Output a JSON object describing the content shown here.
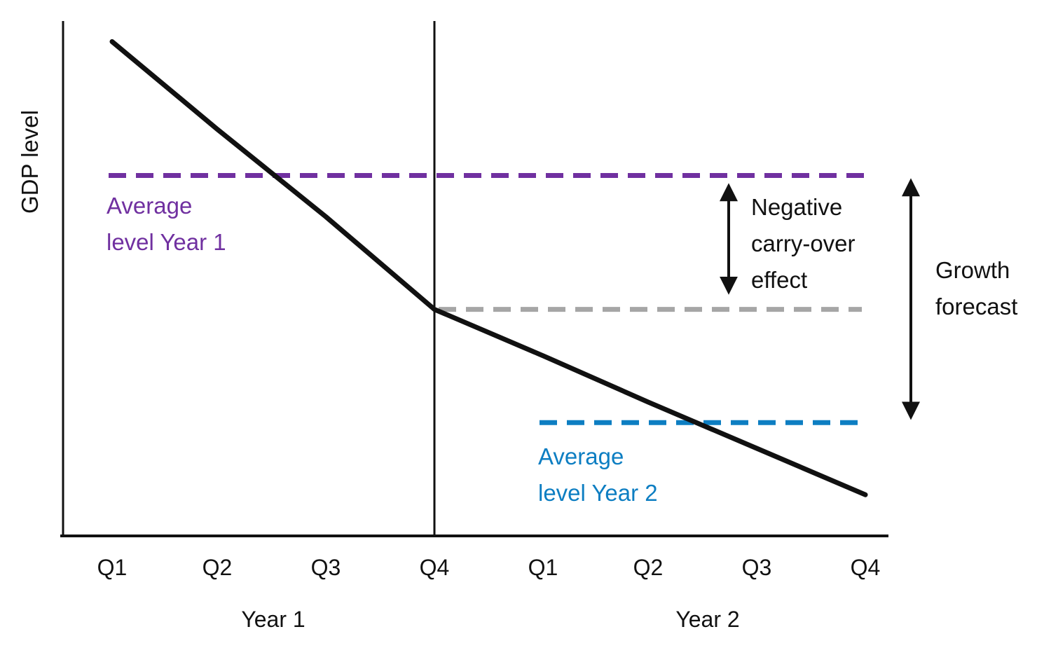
{
  "y_axis_label": "GDP level",
  "annotations": {
    "avg_year1": "Average\nlevel Year 1",
    "avg_year2": "Average\nlevel Year 2",
    "negative_carryover": "Negative\ncarry-over\neffect",
    "growth_forecast": "Growth\nforecast"
  },
  "x_axis": {
    "quarter_labels": [
      "Q1",
      "Q2",
      "Q3",
      "Q4",
      "Q1",
      "Q2",
      "Q3",
      "Q4"
    ],
    "year_labels": [
      "Year 1",
      "Year 2"
    ]
  },
  "colors": {
    "line_black": "#111111",
    "purple": "#7030A0",
    "blue": "#0D7EC2",
    "gray": "#A6A6A6"
  },
  "chart_data": {
    "type": "line",
    "title": "",
    "xlabel": "",
    "ylabel": "GDP level",
    "categories": [
      "Year 1 Q1",
      "Year 1 Q2",
      "Year 1 Q3",
      "Year 1 Q4",
      "Year 2 Q1",
      "Year 2 Q2",
      "Year 2 Q3",
      "Year 2 Q4"
    ],
    "values": [
      96,
      79,
      62,
      44,
      35,
      26,
      17,
      8
    ],
    "ylim": [
      0,
      100
    ],
    "grid": false,
    "legend_position": "none",
    "reference_lines": [
      {
        "label": "Average level Year 1",
        "value": 70,
        "color": "#7030A0",
        "style": "dashed"
      },
      {
        "label": "Q4 Year 1 carry-over level",
        "value": 44,
        "color": "#A6A6A6",
        "style": "dashed"
      },
      {
        "label": "Average level Year 2",
        "value": 22,
        "color": "#0D7EC2",
        "style": "dashed"
      }
    ],
    "annotations": [
      {
        "text": "Negative carry-over effect",
        "between": [
          "Average level Year 1",
          "Q4 Year 1 carry-over level"
        ]
      },
      {
        "text": "Growth forecast",
        "between": [
          "Average level Year 1",
          "Average level Year 2"
        ]
      }
    ]
  }
}
